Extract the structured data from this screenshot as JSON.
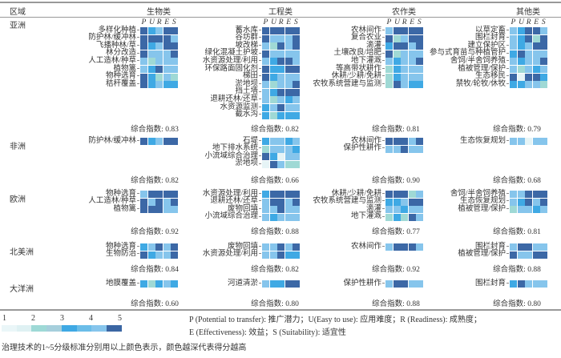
{
  "header": {
    "region": "区域",
    "categories": [
      "生物类",
      "工程类",
      "农作类",
      "其他类"
    ]
  },
  "columns_letters": [
    "P",
    "U",
    "R",
    "E",
    "S"
  ],
  "score_prefix": "综合指数: ",
  "color_scale": {
    "1": "#e6f4f6",
    "2": "#9fd9d5",
    "3": "#86c5ec",
    "4": "#3fa9e4",
    "5": "#3c68a6"
  },
  "chart_data": {
    "type": "heatmap",
    "columns": [
      "P",
      "U",
      "R",
      "E",
      "S"
    ],
    "value_range": [
      1,
      5
    ],
    "regions": [
      {
        "name": "亚洲",
        "blocks": [
          {
            "category": "生物类",
            "score": "0.83",
            "rows": [
              {
                "label": "多样化种植",
                "values": [
                  5,
                  4,
                  3,
                  5,
                  5
                ]
              },
              {
                "label": "防护林/缓冲林",
                "values": [
                  5,
                  5,
                  5,
                  5,
                  3
                ]
              },
              {
                "label": "飞播种林/草",
                "values": [
                  5,
                  4,
                  3,
                  5,
                  5
                ]
              },
              {
                "label": "林分改造",
                "values": [
                  5,
                  3,
                  3,
                  3,
                  5
                ]
              },
              {
                "label": "人工造林/种草",
                "values": [
                  3,
                  2,
                  3,
                  3,
                  3
                ]
              },
              {
                "label": "植物篱",
                "values": [
                  3,
                  4,
                  5,
                  3,
                  3
                ]
              },
              {
                "label": "物种选育",
                "values": [
                  5,
                  4,
                  2,
                  3,
                  2
                ]
              },
              {
                "label": "秸秆覆盖",
                "values": [
                  5,
                  4,
                  3,
                  4,
                  4
                ]
              }
            ]
          },
          {
            "category": "工程类",
            "score": "0.82",
            "rows": [
              {
                "label": "蓄水库",
                "values": [
                  5,
                  5,
                  5,
                  5,
                  5
                ]
              },
              {
                "label": "谷坊群",
                "values": [
                  5,
                  3,
                  3,
                  3,
                  5
                ]
              },
              {
                "label": "坡改梯",
                "values": [
                  3,
                  2,
                  5,
                  3,
                  5
                ]
              },
              {
                "label": "绿化混凝土护坡",
                "values": [
                  5,
                  3,
                  3,
                  3,
                  3
                ]
              },
              {
                "label": "水资源处理/利用",
                "values": [
                  3,
                  4,
                  5,
                  5,
                  3
                ]
              },
              {
                "label": "环保路面固化剂",
                "values": [
                  5,
                  4,
                  4,
                  5,
                  5
                ]
              },
              {
                "label": "梯田",
                "values": [
                  5,
                  4,
                  3,
                  3,
                  3
                ]
              },
              {
                "label": "淤地坝",
                "values": [
                  3,
                  2,
                  3,
                  3,
                  5
                ]
              },
              {
                "label": "挡土墙",
                "values": [
                  3,
                  4,
                  5,
                  5,
                  5
                ]
              },
              {
                "label": "退耕还林/还草",
                "values": [
                  3,
                  2,
                  3,
                  4,
                  3
                ]
              },
              {
                "label": "水资源监测",
                "values": [
                  4,
                  3,
                  5,
                  3,
                  3
                ]
              },
              {
                "label": "截水沟",
                "values": [
                  4,
                  2,
                  4,
                  4,
                  4
                ]
              }
            ]
          },
          {
            "category": "农作类",
            "score": "0.81",
            "rows": [
              {
                "label": "农林间作",
                "values": [
                  3,
                  5,
                  5,
                  5,
                  5
                ]
              },
              {
                "label": "复合农业",
                "values": [
                  5,
                  2,
                  3,
                  5,
                  5
                ]
              },
              {
                "label": "滴灌",
                "values": [
                  4,
                  5,
                  5,
                  3,
                  5
                ]
              },
              {
                "label": "土壤改良/培肥",
                "values": [
                  5,
                  2,
                  3,
                  3,
                  3
                ]
              },
              {
                "label": "地下灌溉",
                "values": [
                  3,
                  4,
                  3,
                  3,
                  5
                ]
              },
              {
                "label": "等高带状耕作",
                "values": [
                  2,
                  4,
                  3,
                  3,
                  3
                ]
              },
              {
                "label": "休耕/少耕/免耕",
                "values": [
                  2,
                  4,
                  3,
                  3,
                  3
                ]
              },
              {
                "label": "农牧系统营建与监测",
                "values": [
                  2,
                  5,
                  3,
                  4,
                  4
                ]
              }
            ]
          },
          {
            "category": "其他类",
            "score": "0.79",
            "rows": [
              {
                "label": "以草定畜",
                "values": [
                  3,
                  4,
                  5,
                  5,
                  3
                ]
              },
              {
                "label": "围栏封育",
                "values": [
                  3,
                  4,
                  5,
                  2,
                  5
                ]
              },
              {
                "label": "建立保护区",
                "values": [
                  3,
                  4,
                  3,
                  5,
                  5
                ]
              },
              {
                "label": "参与式育苗与种植管护",
                "values": [
                  4,
                  5,
                  3,
                  3,
                  3
                ]
              },
              {
                "label": "舍饲/半舍饲养殖",
                "values": [
                  3,
                  4,
                  3,
                  3,
                  5
                ]
              },
              {
                "label": "植被管理/保护",
                "values": [
                  3,
                  2,
                  3,
                  4,
                  3
                ]
              },
              {
                "label": "生态移民",
                "values": [
                  5,
                  1,
                  5,
                  5,
                  4
                ]
              },
              {
                "label": "禁牧/轮牧/休牧",
                "values": [
                  4,
                  4,
                  3,
                  3,
                  2
                ]
              }
            ]
          }
        ]
      },
      {
        "name": "非洲",
        "blocks": [
          {
            "category": "生物类",
            "score": "0.82",
            "rows": [
              {
                "label": "防护林/缓冲林",
                "values": [
                  5,
                  4,
                  3,
                  5,
                  5
                ]
              }
            ]
          },
          {
            "category": "工程类",
            "score": "0.66",
            "rows": [
              {
                "label": "石堤",
                "values": [
                  4,
                  3,
                  3,
                  4,
                  3
                ]
              },
              {
                "label": "地下排水系统",
                "values": [
                  2,
                  3,
                  3,
                  3,
                  4
                ]
              },
              {
                "label": "小流域综合治理",
                "values": [
                  5,
                  4,
                  1,
                  3,
                  3
                ]
              },
              {
                "label": "淤地坝",
                "values": [
                  1,
                  5,
                  3,
                  2,
                  2
                ]
              }
            ]
          },
          {
            "category": "农作类",
            "score": "0.90",
            "rows": [
              {
                "label": "农林间作",
                "values": [
                  5,
                  5,
                  5,
                  3,
                  5
                ]
              },
              {
                "label": "保护性耕作",
                "values": [
                  3,
                  3,
                  5,
                  3,
                  3
                ]
              }
            ]
          },
          {
            "category": "其他类",
            "score": "0.68",
            "rows": [
              {
                "label": "生态恢复规划",
                "values": [
                  3,
                  3,
                  1,
                  3,
                  3
                ]
              }
            ]
          }
        ]
      },
      {
        "name": "欧洲",
        "blocks": [
          {
            "category": "生物类",
            "score": "0.92",
            "rows": [
              {
                "label": "物种选育",
                "values": [
                  3,
                  5,
                  5,
                  5,
                  5
                ]
              },
              {
                "label": "人工造林/种草",
                "values": [
                  5,
                  3,
                  5,
                  3,
                  5
                ]
              },
              {
                "label": "植物篱",
                "values": [
                  5,
                  5,
                  5,
                  3,
                  3
                ]
              }
            ]
          },
          {
            "category": "工程类",
            "score": "0.88",
            "rows": [
              {
                "label": "水资源处理/利用",
                "values": [
                  4,
                  5,
                  5,
                  5,
                  5
                ]
              },
              {
                "label": "退耕还林/还草",
                "values": [
                  3,
                  5,
                  5,
                  3,
                  5
                ]
              },
              {
                "label": "废物回填",
                "values": [
                  3,
                  3,
                  5,
                  3,
                  3
                ]
              },
              {
                "label": "小流域综合治理",
                "values": [
                  3,
                  4,
                  3,
                  3,
                  3
                ]
              }
            ]
          },
          {
            "category": "农作类",
            "score": "0.77",
            "rows": [
              {
                "label": "休耕/少耕/免耕",
                "values": [
                  5,
                  5,
                  5,
                  2,
                  3
                ]
              },
              {
                "label": "农牧系统营建与监测",
                "values": [
                  4,
                  4,
                  3,
                  5,
                  5
                ]
              },
              {
                "label": "滴灌",
                "values": [
                  3,
                  3,
                  4,
                  3,
                  3
                ]
              },
              {
                "label": "地下灌溉",
                "values": [
                  2,
                  4,
                  2,
                  5,
                  3
                ]
              }
            ]
          },
          {
            "category": "其他类",
            "score": "0.81",
            "rows": [
              {
                "label": "舍饲/半舍饲养殖",
                "values": [
                  3,
                  3,
                  5,
                  5,
                  5
                ]
              },
              {
                "label": "生态恢复规划",
                "values": [
                  3,
                  4,
                  5,
                  3,
                  5
                ]
              },
              {
                "label": "植被管理/保护",
                "values": [
                  2,
                  3,
                  3,
                  4,
                  3
                ]
              }
            ]
          }
        ]
      },
      {
        "name": "北美洲",
        "blocks": [
          {
            "category": "生物类",
            "score": "0.84",
            "rows": [
              {
                "label": "物种选育",
                "values": [
                  4,
                  3,
                  5,
                  3,
                  5
                ]
              },
              {
                "label": "生物防治",
                "values": [
                  5,
                  4,
                  3,
                  3,
                  5
                ]
              }
            ]
          },
          {
            "category": "工程类",
            "score": "0.82",
            "rows": [
              {
                "label": "废物回填",
                "values": [
                  3,
                  3,
                  5,
                  3,
                  5
                ]
              },
              {
                "label": "水资源处理/利用",
                "values": [
                  3,
                  3,
                  5,
                  4,
                  4
                ]
              }
            ]
          },
          {
            "category": "农作类",
            "score": "0.92",
            "rows": [
              {
                "label": "农林间作",
                "values": [
                  3,
                  5,
                  5,
                  5,
                  3
                ]
              }
            ]
          },
          {
            "category": "其他类",
            "score": "0.88",
            "rows": [
              {
                "label": "围栏封育",
                "values": [
                  3,
                  5,
                  5,
                  3,
                  3
                ]
              },
              {
                "label": "植被管理/保护",
                "values": [
                  5,
                  3,
                  3,
                  5,
                  5
                ]
              }
            ]
          }
        ]
      },
      {
        "name": "大洋洲",
        "blocks": [
          {
            "category": "生物类",
            "score": "0.60",
            "rows": [
              {
                "label": "地膜覆盖",
                "values": [
                  4,
                  2,
                  4,
                  3,
                  4
                ]
              }
            ]
          },
          {
            "category": "工程类",
            "score": "0.80",
            "rows": [
              {
                "label": "河道清淤",
                "values": [
                  3,
                  4,
                  4,
                  5,
                  5
                ]
              }
            ]
          },
          {
            "category": "农作类",
            "score": "0.88",
            "rows": [
              {
                "label": "保护性耕作",
                "values": [
                  3,
                  5,
                  5,
                  3,
                  3
                ]
              }
            ]
          },
          {
            "category": "其他类",
            "score": "0.80",
            "rows": [
              {
                "label": "围栏封育",
                "values": [
                  4,
                  5,
                  3,
                  3,
                  3
                ]
              }
            ]
          }
        ]
      }
    ]
  },
  "legend": {
    "numbers": [
      "1",
      "2",
      "3",
      "4",
      "5"
    ],
    "swatches": [
      "#eaf6f8",
      "#dff1f3",
      "#9ed9d6",
      "#a6cfdc",
      "#3fa9e4",
      "#6bbde8",
      "#86c5ec",
      "#3b66a3"
    ],
    "definitions_line1": "P (Potential to transfer): 推广潜力；U(Easy to use): 应用难度；R (Readiness): 成熟度；",
    "definitions_line2": "E (Effectiveness): 效益；S (Suitability): 适宜性",
    "note": "治理技术的1~5分级标准分别用以上颜色表示，颜色越深代表得分越高"
  }
}
